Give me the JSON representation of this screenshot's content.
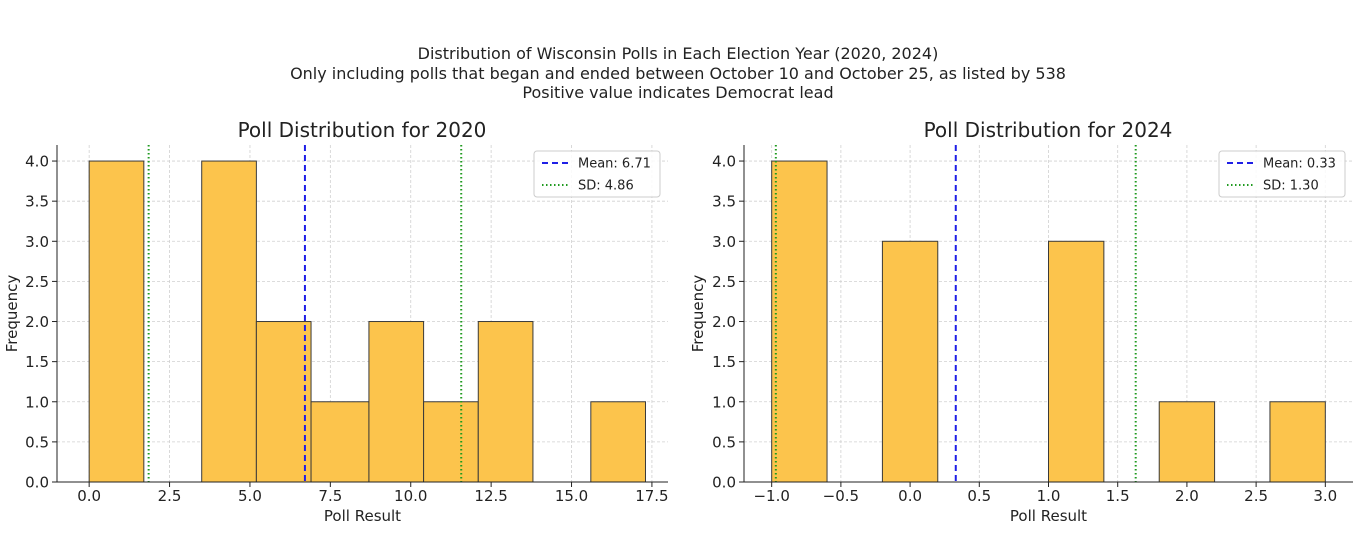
{
  "suptitle": {
    "line1": "Distribution of Wisconsin Polls in Each Election Year (2020, 2024)",
    "line2": "Only including polls that began and ended between October 10 and October 25, as listed by 538",
    "line3": "Positive value indicates Democrat lead"
  },
  "colors": {
    "bar_fill": "#fcc44c",
    "bar_edge": "#3a3a3a",
    "mean_line": "#1f1fe6",
    "sd_line": "#1f9a1f",
    "grid": "#d0d0d0"
  },
  "chart_data": [
    {
      "type": "bar",
      "title": "Poll Distribution for 2020",
      "xlabel": "Poll Result",
      "ylabel": "Frequency",
      "xlim": [
        -1.0,
        18.0
      ],
      "ylim": [
        0,
        4.2
      ],
      "xticks": [
        0.0,
        2.5,
        5.0,
        7.5,
        10.0,
        12.5,
        15.0,
        17.5
      ],
      "xtick_labels": [
        "0.0",
        "2.5",
        "5.0",
        "7.5",
        "10.0",
        "12.5",
        "15.0",
        "17.5"
      ],
      "yticks": [
        0.0,
        0.5,
        1.0,
        1.5,
        2.0,
        2.5,
        3.0,
        3.5,
        4.0
      ],
      "ytick_labels": [
        "0.0",
        "0.5",
        "1.0",
        "1.5",
        "2.0",
        "2.5",
        "3.0",
        "3.5",
        "4.0"
      ],
      "bins": [
        {
          "x0": 0.0,
          "x1": 1.7,
          "count": 4
        },
        {
          "x0": 1.7,
          "x1": 3.5,
          "count": 0
        },
        {
          "x0": 3.5,
          "x1": 5.2,
          "count": 4
        },
        {
          "x0": 5.2,
          "x1": 6.9,
          "count": 2
        },
        {
          "x0": 6.9,
          "x1": 8.7,
          "count": 1
        },
        {
          "x0": 8.7,
          "x1": 10.4,
          "count": 2
        },
        {
          "x0": 10.4,
          "x1": 12.1,
          "count": 1
        },
        {
          "x0": 12.1,
          "x1": 13.8,
          "count": 2
        },
        {
          "x0": 13.8,
          "x1": 15.6,
          "count": 0
        },
        {
          "x0": 15.6,
          "x1": 17.3,
          "count": 1
        }
      ],
      "mean": 6.71,
      "sd": 4.86,
      "legend": [
        {
          "label": "Mean: 6.71",
          "style": "dashed"
        },
        {
          "label": "SD: 4.86",
          "style": "dotted"
        }
      ],
      "legend_position": "upper right",
      "grid": true
    },
    {
      "type": "bar",
      "title": "Poll Distribution for 2024",
      "xlabel": "Poll Result",
      "ylabel": "Frequency",
      "xlim": [
        -1.2,
        3.2
      ],
      "ylim": [
        0,
        4.2
      ],
      "xticks": [
        -1.0,
        -0.5,
        0.0,
        0.5,
        1.0,
        1.5,
        2.0,
        2.5,
        3.0
      ],
      "xtick_labels": [
        "−1.0",
        "−0.5",
        "0.0",
        "0.5",
        "1.0",
        "1.5",
        "2.0",
        "2.5",
        "3.0"
      ],
      "yticks": [
        0.0,
        0.5,
        1.0,
        1.5,
        2.0,
        2.5,
        3.0,
        3.5,
        4.0
      ],
      "ytick_labels": [
        "0.0",
        "0.5",
        "1.0",
        "1.5",
        "2.0",
        "2.5",
        "3.0",
        "3.5",
        "4.0"
      ],
      "bins": [
        {
          "x0": -1.0,
          "x1": -0.6,
          "count": 4
        },
        {
          "x0": -0.6,
          "x1": -0.2,
          "count": 0
        },
        {
          "x0": -0.2,
          "x1": 0.2,
          "count": 3
        },
        {
          "x0": 0.2,
          "x1": 0.6,
          "count": 0
        },
        {
          "x0": 0.6,
          "x1": 1.0,
          "count": 0
        },
        {
          "x0": 1.0,
          "x1": 1.4,
          "count": 3
        },
        {
          "x0": 1.4,
          "x1": 1.8,
          "count": 0
        },
        {
          "x0": 1.8,
          "x1": 2.2,
          "count": 1
        },
        {
          "x0": 2.2,
          "x1": 2.6,
          "count": 0
        },
        {
          "x0": 2.6,
          "x1": 3.0,
          "count": 1
        }
      ],
      "mean": 0.33,
      "sd": 1.3,
      "legend": [
        {
          "label": "Mean: 0.33",
          "style": "dashed"
        },
        {
          "label": "SD: 1.30",
          "style": "dotted"
        }
      ],
      "legend_position": "upper right",
      "grid": true
    }
  ]
}
